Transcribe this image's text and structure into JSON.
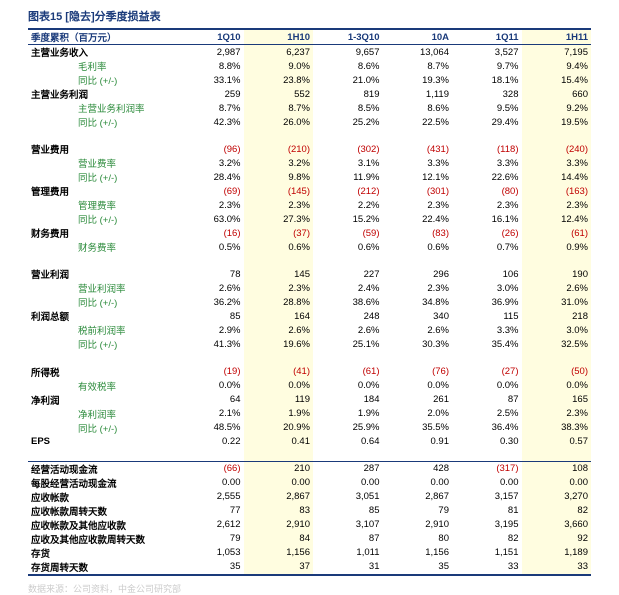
{
  "title": "图表15 [隐去]分季度损益表",
  "footer": "数据来源：公司资料，中金公司研究部",
  "colors": {
    "accent": "#1a3a7a",
    "highlight_bg": "#fffde0",
    "positive": "#000000",
    "negative": "#c00000",
    "sublabel": "#2a8a3a"
  },
  "columns": [
    "季度累积（百万元）",
    "1Q10",
    "1H10",
    "1-3Q10",
    "10A",
    "1Q11",
    "1H11"
  ],
  "highlight_cols": [
    2,
    6
  ],
  "rows": [
    {
      "label": "主营业务收入",
      "bold": true,
      "vals": [
        "2,987",
        "6,237",
        "9,657",
        "13,064",
        "3,527",
        "7,195"
      ]
    },
    {
      "label": "毛利率",
      "sub": true,
      "vals": [
        "8.8%",
        "9.0%",
        "8.6%",
        "8.7%",
        "9.7%",
        "9.4%"
      ]
    },
    {
      "label": "同比 (+/-)",
      "sub": true,
      "vals": [
        "33.1%",
        "23.8%",
        "21.0%",
        "19.3%",
        "18.1%",
        "15.4%"
      ]
    },
    {
      "label": "主营业务利润",
      "bold": true,
      "vals": [
        "259",
        "552",
        "819",
        "1,119",
        "328",
        "660"
      ]
    },
    {
      "label": "主营业务利润率",
      "sub": true,
      "vals": [
        "8.7%",
        "8.7%",
        "8.5%",
        "8.6%",
        "9.5%",
        "9.2%"
      ]
    },
    {
      "label": "同比 (+/-)",
      "sub": true,
      "vals": [
        "42.3%",
        "26.0%",
        "25.2%",
        "22.5%",
        "29.4%",
        "19.5%"
      ]
    },
    {
      "label": "",
      "blank": true
    },
    {
      "label": "营业费用",
      "bold": true,
      "neg": true,
      "vals": [
        "(96)",
        "(210)",
        "(302)",
        "(431)",
        "(118)",
        "(240)"
      ]
    },
    {
      "label": "营业费率",
      "sub": true,
      "vals": [
        "3.2%",
        "3.2%",
        "3.1%",
        "3.3%",
        "3.3%",
        "3.3%"
      ]
    },
    {
      "label": "同比 (+/-)",
      "sub": true,
      "vals": [
        "28.4%",
        "9.8%",
        "11.9%",
        "12.1%",
        "22.6%",
        "14.4%"
      ]
    },
    {
      "label": "管理费用",
      "bold": true,
      "neg": true,
      "vals": [
        "(69)",
        "(145)",
        "(212)",
        "(301)",
        "(80)",
        "(163)"
      ]
    },
    {
      "label": "管理费率",
      "sub": true,
      "vals": [
        "2.3%",
        "2.3%",
        "2.2%",
        "2.3%",
        "2.3%",
        "2.3%"
      ]
    },
    {
      "label": "同比 (+/-)",
      "sub": true,
      "vals": [
        "63.0%",
        "27.3%",
        "15.2%",
        "22.4%",
        "16.1%",
        "12.4%"
      ]
    },
    {
      "label": "财务费用",
      "bold": true,
      "neg": true,
      "vals": [
        "(16)",
        "(37)",
        "(59)",
        "(83)",
        "(26)",
        "(61)"
      ]
    },
    {
      "label": "财务费率",
      "sub": true,
      "vals": [
        "0.5%",
        "0.6%",
        "0.6%",
        "0.6%",
        "0.7%",
        "0.9%"
      ]
    },
    {
      "label": "",
      "blank": true
    },
    {
      "label": "营业利润",
      "bold": true,
      "vals": [
        "78",
        "145",
        "227",
        "296",
        "106",
        "190"
      ]
    },
    {
      "label": "营业利润率",
      "sub": true,
      "vals": [
        "2.6%",
        "2.3%",
        "2.4%",
        "2.3%",
        "3.0%",
        "2.6%"
      ]
    },
    {
      "label": "同比 (+/-)",
      "sub": true,
      "vals": [
        "36.2%",
        "28.8%",
        "38.6%",
        "34.8%",
        "36.9%",
        "31.0%"
      ]
    },
    {
      "label": "利润总额",
      "bold": true,
      "vals": [
        "85",
        "164",
        "248",
        "340",
        "115",
        "218"
      ]
    },
    {
      "label": "税前利润率",
      "sub": true,
      "vals": [
        "2.9%",
        "2.6%",
        "2.6%",
        "2.6%",
        "3.3%",
        "3.0%"
      ]
    },
    {
      "label": "同比 (+/-)",
      "sub": true,
      "vals": [
        "41.3%",
        "19.6%",
        "25.1%",
        "30.3%",
        "35.4%",
        "32.5%"
      ]
    },
    {
      "label": "",
      "blank": true
    },
    {
      "label": "所得税",
      "bold": true,
      "neg": true,
      "vals": [
        "(19)",
        "(41)",
        "(61)",
        "(76)",
        "(27)",
        "(50)"
      ]
    },
    {
      "label": "有效税率",
      "sub": true,
      "vals": [
        "0.0%",
        "0.0%",
        "0.0%",
        "0.0%",
        "0.0%",
        "0.0%"
      ]
    },
    {
      "label": "净利润",
      "bold": true,
      "vals": [
        "64",
        "119",
        "184",
        "261",
        "87",
        "165"
      ]
    },
    {
      "label": "净利润率",
      "sub": true,
      "vals": [
        "2.1%",
        "1.9%",
        "1.9%",
        "2.0%",
        "2.5%",
        "2.3%"
      ]
    },
    {
      "label": "同比 (+/-)",
      "sub": true,
      "vals": [
        "48.5%",
        "20.9%",
        "25.9%",
        "35.5%",
        "36.4%",
        "38.3%"
      ]
    },
    {
      "label": "EPS",
      "bold": true,
      "vals": [
        "0.22",
        "0.41",
        "0.64",
        "0.91",
        "0.30",
        "0.57"
      ]
    },
    {
      "label": "",
      "blank": true
    },
    {
      "label": "经营活动现金流",
      "bold": true,
      "sec": true,
      "vals": [
        "(66)",
        "210",
        "287",
        "428",
        "(317)",
        "108"
      ],
      "negcols": [
        0,
        4
      ]
    },
    {
      "label": "每股经营活动现金流",
      "bold": true,
      "vals": [
        "0.00",
        "0.00",
        "0.00",
        "0.00",
        "0.00",
        "0.00"
      ]
    },
    {
      "label": "应收帐款",
      "bold": true,
      "vals": [
        "2,555",
        "2,867",
        "3,051",
        "2,867",
        "3,157",
        "3,270"
      ]
    },
    {
      "label": "应收帐款周转天数",
      "bold": true,
      "vals": [
        "77",
        "83",
        "85",
        "79",
        "81",
        "82"
      ]
    },
    {
      "label": "应收帐款及其他应收款",
      "bold": true,
      "vals": [
        "2,612",
        "2,910",
        "3,107",
        "2,910",
        "3,195",
        "3,660"
      ]
    },
    {
      "label": "应收及其他应收款周转天数",
      "bold": true,
      "vals": [
        "79",
        "84",
        "87",
        "80",
        "82",
        "92"
      ]
    },
    {
      "label": "存货",
      "bold": true,
      "vals": [
        "1,053",
        "1,156",
        "1,011",
        "1,156",
        "1,151",
        "1,189"
      ]
    },
    {
      "label": "存货周转天数",
      "bold": true,
      "vals": [
        "35",
        "37",
        "31",
        "35",
        "33",
        "33"
      ]
    }
  ]
}
